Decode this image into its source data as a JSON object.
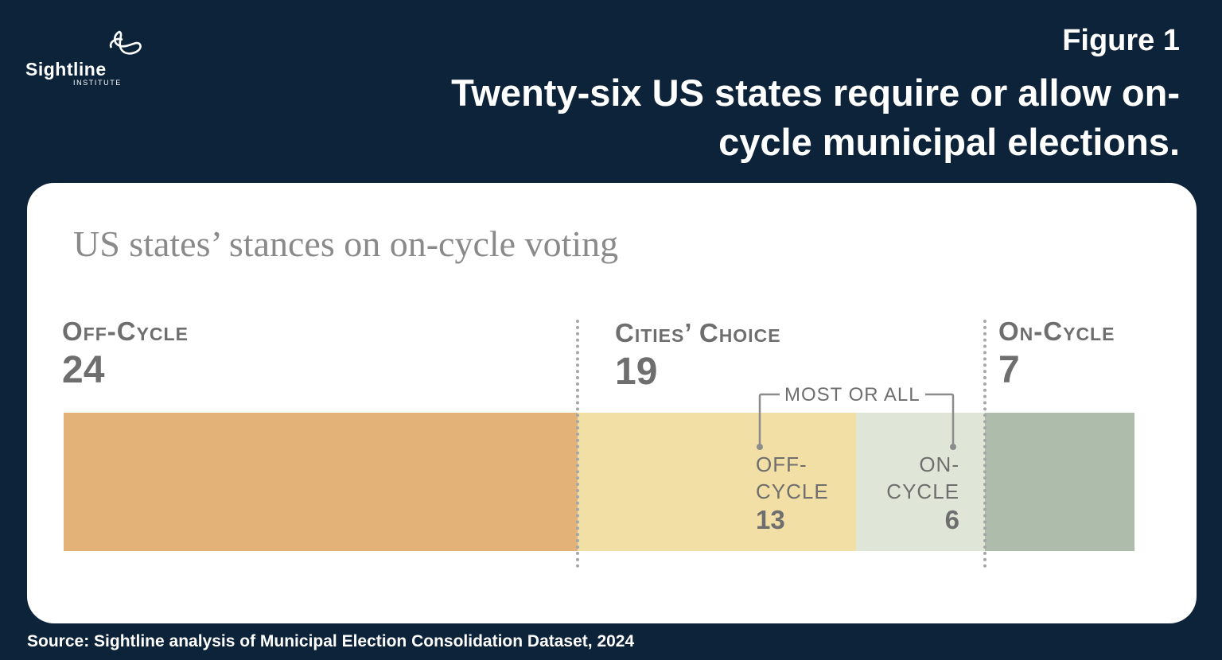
{
  "logo": {
    "name": "Sightline",
    "sub": "INSTITUTE"
  },
  "figure_label": "Figure 1",
  "headline": "Twenty-six US states require or allow on-cycle municipal elections.",
  "source": "Source: Sightline analysis of Municipal Election Consolidation Dataset, 2024",
  "colors": {
    "background": "#0d2339",
    "off_cycle": "#e3b279",
    "choice_off": "#f2dfa5",
    "choice_on": "#dfe6d7",
    "on_cycle": "#adbcab"
  },
  "chart_data": {
    "type": "bar",
    "orientation": "horizontal-stacked",
    "title": "US states’ stances on on-cycle voting",
    "total": 50,
    "categories": [
      {
        "label": "Off-Cycle",
        "value": 24
      },
      {
        "label": "Cities’ Choice",
        "value": 19,
        "breakdown": [
          {
            "label": "OFF-\nCYCLE",
            "value": 13
          },
          {
            "label": "ON-\nCYCLE",
            "value": 6
          }
        ]
      },
      {
        "label": "On-Cycle",
        "value": 7
      }
    ],
    "annotation": "MOST OR ALL"
  }
}
